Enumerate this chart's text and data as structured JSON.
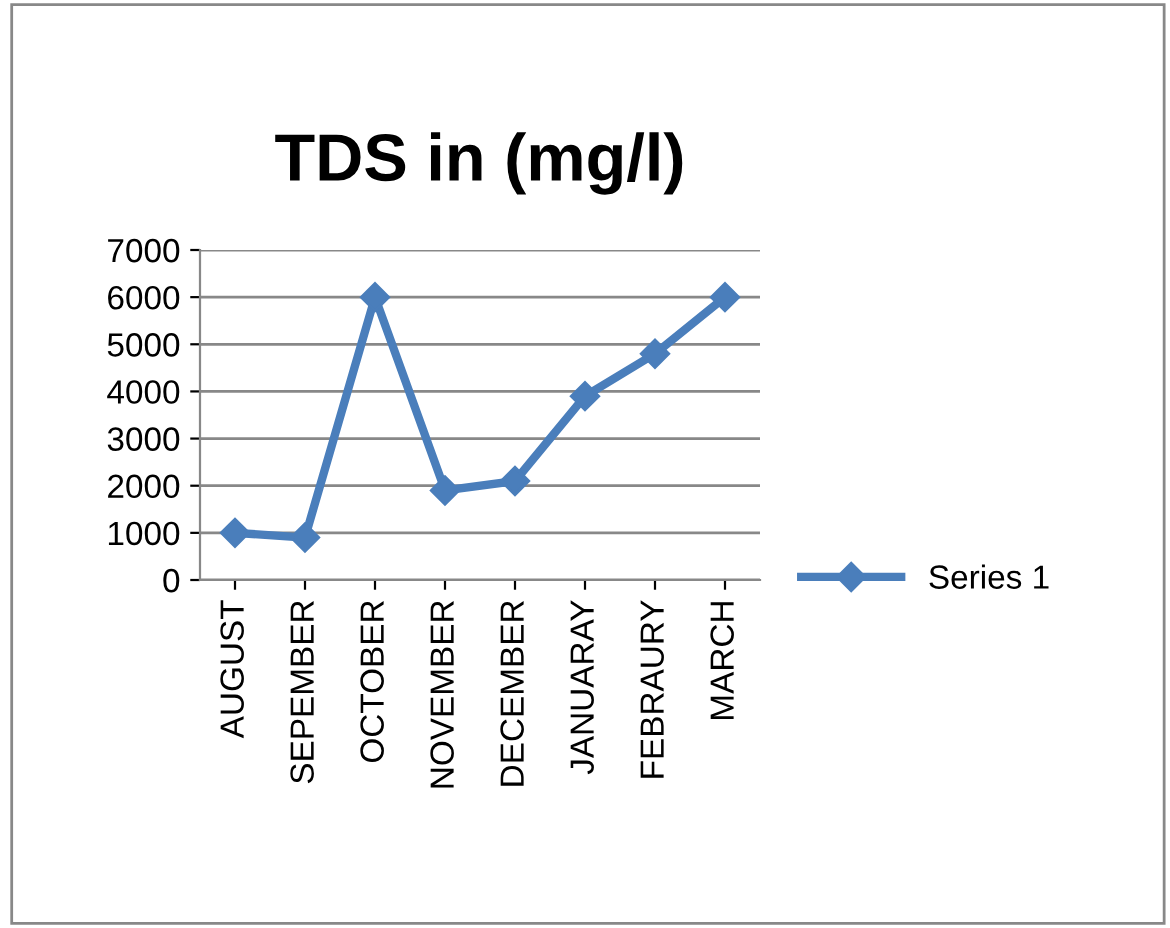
{
  "chart_data": {
    "type": "line",
    "title": "TDS in (mg/l)",
    "categories": [
      "AUGUST",
      "SEPEMBER",
      "OCTOBER",
      "NOVEMBER",
      "DECEMBER",
      "JANUARAY",
      "FEBRAURY",
      "MARCH"
    ],
    "series": [
      {
        "name": "Series 1",
        "color": "#4a7ebb",
        "values": [
          1000,
          900,
          6000,
          1900,
          2100,
          3900,
          4800,
          6000
        ]
      }
    ],
    "ylim": [
      0,
      7000
    ],
    "yticks": [
      0,
      1000,
      2000,
      3000,
      4000,
      5000,
      6000,
      7000
    ],
    "grid": "y",
    "legend": "right",
    "marker": "diamond",
    "line_style": "solid"
  }
}
